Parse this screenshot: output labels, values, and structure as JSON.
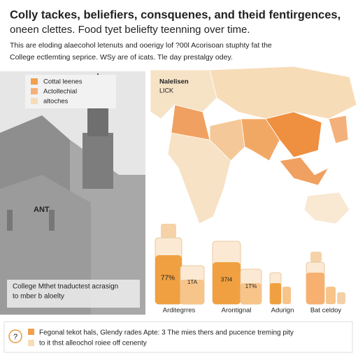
{
  "header": {
    "title": "Colly tackes, beliefiers, consquenes, and theid fentirgences,",
    "subtitle": "oneen clettes. Food tyet beliefty teenning over time.",
    "intro": [
      "This are eloding alaecohol letenuts and ooerigy lof ?00l Acorisoan stuphty fat the",
      "College ectlemting seprice. WSy are of icats. Tle day prestalgy odey."
    ]
  },
  "legend": [
    "Cottal leenes",
    "Actollechial",
    "altoches"
  ],
  "building": {
    "label": "ANT",
    "caption": [
      "College Mthet tnaductest acrasign",
      "to mber b aloelty"
    ]
  },
  "map": {
    "labels": [
      "Nalelisen",
      "LICK"
    ]
  },
  "bottles": [
    {
      "label": "Arditegrres",
      "texts": [
        "77%",
        "1TA"
      ]
    },
    {
      "label": "Arontignal",
      "texts": [
        "37I4",
        "1T%"
      ]
    },
    {
      "label": "Adurign",
      "texts": []
    },
    {
      "label": "Bat celdoy",
      "texts": []
    }
  ],
  "footer": {
    "icon": "?",
    "lines": [
      "Fegonal tekot hals, Glendy rades Apte: 3 The mies thers and pucence treming pity",
      "to it thst alleochol roiee off cenenty"
    ]
  }
}
